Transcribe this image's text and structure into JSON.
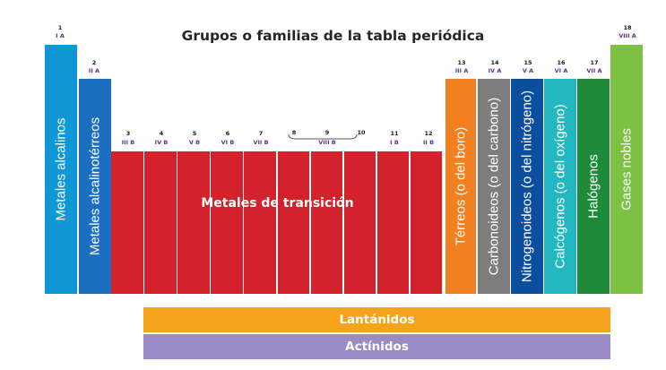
{
  "title": "Grupos o familias de la tabla periódica",
  "colors": {
    "alcalinos": "#0f97d6",
    "alcalinoterreos": "#1c6fc0",
    "transicion": "#d3222b",
    "terreos": "#f28020",
    "carbonoideos": "#7d7d7d",
    "nitrogenoideos": "#0b4e9e",
    "calcogenos": "#22b7c1",
    "halogenos": "#1e8a3a",
    "gases_nobles": "#7dc143",
    "lantanidos": "#f6a31c",
    "actinidos": "#9a8ac6"
  },
  "groups": [
    {
      "num": "1",
      "roman": "I A",
      "label": "Metales alcalinos"
    },
    {
      "num": "2",
      "roman": "II A",
      "label": "Metales alcalinotérreos"
    },
    {
      "num": "3",
      "roman": "III B"
    },
    {
      "num": "4",
      "roman": "IV B"
    },
    {
      "num": "5",
      "roman": "V B"
    },
    {
      "num": "6",
      "roman": "VI B"
    },
    {
      "num": "7",
      "roman": "VII B"
    },
    {
      "num": "8"
    },
    {
      "num": "9",
      "roman": "VIII B"
    },
    {
      "num": "10"
    },
    {
      "num": "11",
      "roman": "I B"
    },
    {
      "num": "12",
      "roman": "II B"
    },
    {
      "num": "13",
      "roman": "III A",
      "label": "Térreos (o del boro)"
    },
    {
      "num": "14",
      "roman": "IV A",
      "label": "Carbonoideos (o del carbono)"
    },
    {
      "num": "15",
      "roman": "V A",
      "label": "Nitrogenoideos (o del nitrógeno)"
    },
    {
      "num": "16",
      "roman": "VI A",
      "label": "Calcógenos (o del oxígeno)"
    },
    {
      "num": "17",
      "roman": "VII A",
      "label": "Halógenos"
    },
    {
      "num": "18",
      "roman": "VIII A",
      "label": "Gases nobles"
    }
  ],
  "transition_label": "Metales de transición",
  "lanthanides": "Lantánidos",
  "actinides": "Actínidos"
}
